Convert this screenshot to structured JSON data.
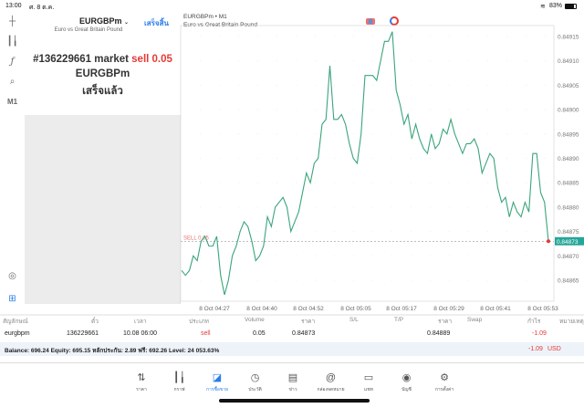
{
  "status_bar": {
    "time": "13:00",
    "date": "ศ. 8 ต.ค.",
    "battery": "83%"
  },
  "toolbar": {
    "items": [
      "crosshair-icon",
      "candles-icon",
      "indicators-icon",
      "objects-icon"
    ],
    "timeframe": "M1"
  },
  "order_panel": {
    "symbol": "EURGBPm",
    "description": "Euro vs Great Britain Pound",
    "done_label": "เสร็จสิ้น",
    "ticket_line": "#136229661 market",
    "ticket_action": "sell 0.05",
    "result_symbol": "EURGBPm",
    "result_status": "เสร็จแล้ว"
  },
  "chart": {
    "symbol_tf": "EURGBPm • M1",
    "description": "Euro vs Great Britain Pound",
    "sell_label": "SELL 0.05",
    "current_price": "0.84873"
  },
  "colors": {
    "line": "#3aa57a",
    "accent": "#2b7de9",
    "sell": "#e53935",
    "price_tag": "#26a69a"
  },
  "chart_data": {
    "type": "line",
    "ylim": [
      0.8486,
      0.8492
    ],
    "yticks": [
      "0.84915",
      "0.84910",
      "0.84905",
      "0.84900",
      "0.84895",
      "0.84890",
      "0.84885",
      "0.84880",
      "0.84875",
      "0.84870",
      "0.84865"
    ],
    "xticks": [
      "8 Oct 04:27",
      "8 Oct 04:40",
      "8 Oct 04:52",
      "8 Oct 05:05",
      "8 Oct 05:17",
      "8 Oct 05:29",
      "8 Oct 05:41",
      "8 Oct 05:53"
    ],
    "sell_level": 0.84873,
    "values": [
      0.84867,
      0.84866,
      0.84867,
      0.8487,
      0.84869,
      0.84873,
      0.84874,
      0.84872,
      0.84872,
      0.84874,
      0.84866,
      0.84862,
      0.84865,
      0.8487,
      0.84872,
      0.84875,
      0.84877,
      0.84876,
      0.84873,
      0.84869,
      0.8487,
      0.84872,
      0.84878,
      0.84876,
      0.8488,
      0.84881,
      0.84882,
      0.8488,
      0.84875,
      0.84877,
      0.84879,
      0.84883,
      0.84887,
      0.84885,
      0.84889,
      0.8489,
      0.84897,
      0.84898,
      0.84909,
      0.84898,
      0.84898,
      0.84899,
      0.84897,
      0.84893,
      0.8489,
      0.84889,
      0.84895,
      0.84907,
      0.84907,
      0.84907,
      0.84906,
      0.8491,
      0.84914,
      0.84914,
      0.84916,
      0.84904,
      0.84901,
      0.84897,
      0.84899,
      0.84894,
      0.84897,
      0.84894,
      0.84892,
      0.84891,
      0.84895,
      0.84892,
      0.84893,
      0.84896,
      0.84895,
      0.84898,
      0.84895,
      0.84893,
      0.84891,
      0.84893,
      0.84893,
      0.84894,
      0.84892,
      0.84887,
      0.84889,
      0.84891,
      0.8489,
      0.84884,
      0.84881,
      0.84882,
      0.84878,
      0.84881,
      0.84879,
      0.84878,
      0.84881,
      0.84879,
      0.84891,
      0.84891,
      0.84883,
      0.84881,
      0.84873
    ]
  },
  "table": {
    "headers": [
      "สัญลักษณ์",
      "ตั๋ว",
      "เวลา",
      "ประเภท",
      "Volume",
      "ราคา",
      "S/L",
      "T/P",
      "ราคา",
      "Swap",
      "กำไร",
      "หมายเหตุ"
    ],
    "row": {
      "symbol": "eurgbpm",
      "ticket": "136229661",
      "time": "10.08 06:00",
      "type": "sell",
      "volume": "0.05",
      "open_price": "0.84873",
      "sl": "",
      "tp": "",
      "price": "0.84889",
      "swap": "",
      "profit": "-1.09",
      "comment": ""
    },
    "balance": "Balance: 696.24 Equity: 695.15 หลักประกัน: 2.89 ฟรี: 692.26 Level: 24 053.63%",
    "total_profit": "-1.09",
    "currency": "USD"
  },
  "tabs": [
    {
      "label": "ราคา",
      "icon": "quotes-icon",
      "active": false
    },
    {
      "label": "กราฟ",
      "icon": "chart-icon",
      "active": false
    },
    {
      "label": "การซื้อขาย",
      "icon": "trade-icon",
      "active": true
    },
    {
      "label": "ประวัติ",
      "icon": "history-icon",
      "active": false
    },
    {
      "label": "ข่าว",
      "icon": "news-icon",
      "active": false
    },
    {
      "label": "กล่องจดหมาย",
      "icon": "mailbox-icon",
      "active": false
    },
    {
      "label": "แชท",
      "icon": "chat-icon",
      "active": false
    },
    {
      "label": "บัญชี",
      "icon": "account-icon",
      "active": false
    },
    {
      "label": "การตั้งค่า",
      "icon": "settings-icon",
      "active": false
    }
  ]
}
